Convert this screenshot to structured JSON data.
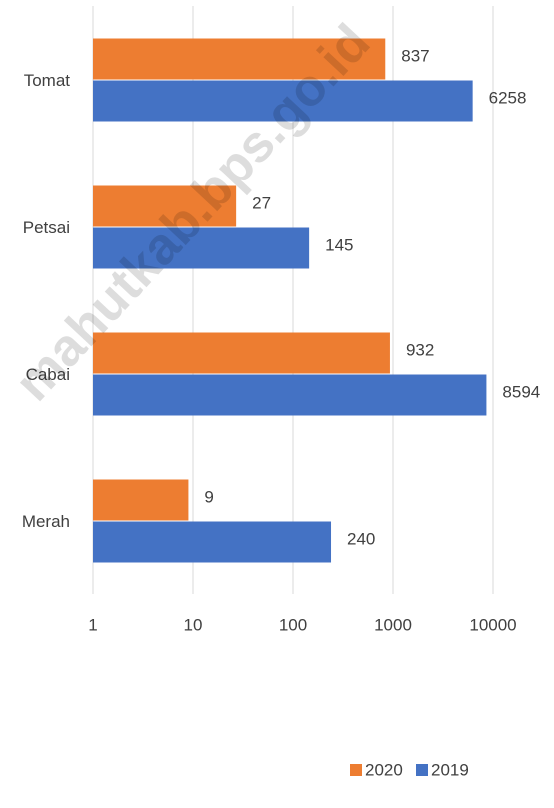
{
  "chart_data": {
    "type": "bar",
    "orientation": "horizontal",
    "categories": [
      "Tomat",
      "Petsai",
      "Cabai",
      "Merah"
    ],
    "series": [
      {
        "name": "2020",
        "color": "#ed7d31",
        "values": [
          837,
          27,
          932,
          9
        ]
      },
      {
        "name": "2019",
        "color": "#4472c4",
        "values": [
          6258,
          145,
          8594,
          240
        ]
      }
    ],
    "xlim": [
      1,
      10000
    ],
    "xticks": [
      1,
      10,
      100,
      1000,
      10000
    ],
    "log_scale": true,
    "grid": true,
    "legend": "bottom",
    "watermark": "mahutkab.bps.go.id"
  }
}
